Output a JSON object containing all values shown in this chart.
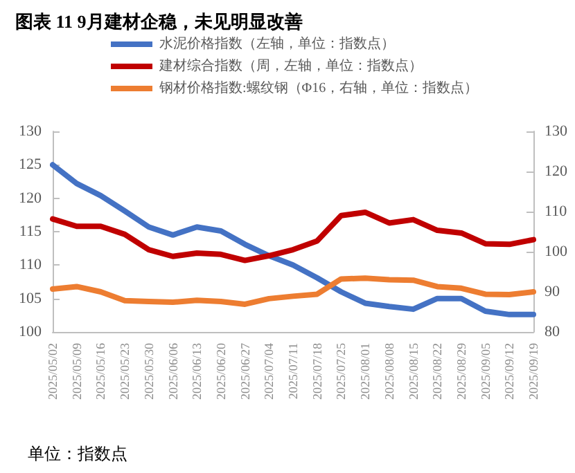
{
  "chart_data": {
    "type": "line",
    "title": "图表 11 9月建材企稳，未见明显改善",
    "categories": [
      "2025/05/02",
      "2025/05/09",
      "2025/05/16",
      "2025/05/23",
      "2025/05/30",
      "2025/06/06",
      "2025/06/13",
      "2025/06/20",
      "2025/06/27",
      "2025/07/04",
      "2025/07/11",
      "2025/07/18",
      "2025/07/25",
      "2025/08/01",
      "2025/08/08",
      "2025/08/15",
      "2025/08/22",
      "2025/08/29",
      "2025/09/05",
      "2025/09/12",
      "2025/09/19"
    ],
    "series": [
      {
        "name": "水泥价格指数（左轴，单位：指数点）",
        "color": "#4472c4",
        "values": [
          125,
          122.2,
          120.4,
          118.1,
          115.7,
          114.5,
          115.7,
          115.1,
          113.1,
          111.4,
          110.0,
          108.1,
          106.0,
          104.3,
          103.8,
          103.4,
          105.0,
          105.0,
          103.1,
          102.6,
          102.6
        ]
      },
      {
        "name": "建材综合指数（周，左轴，单位：指数点）",
        "color": "#c00000",
        "values": [
          116.9,
          115.8,
          115.8,
          114.6,
          112.3,
          111.3,
          111.8,
          111.6,
          110.7,
          111.4,
          112.3,
          113.6,
          117.4,
          117.9,
          116.3,
          116.8,
          115.2,
          114.8,
          113.2,
          113.1,
          113.8
        ]
      },
      {
        "name": "钢材价格指数:螺纹钢（Φ16，右轴，单位：指数点）",
        "color": "#ed7d31",
        "axis": "y2",
        "values": [
          90.7,
          91.3,
          90.0,
          87.8,
          87.6,
          87.4,
          87.9,
          87.6,
          86.9,
          88.3,
          88.9,
          89.4,
          93.2,
          93.4,
          93.0,
          92.9,
          91.3,
          90.9,
          89.4,
          89.3,
          90.0
        ]
      }
    ],
    "ylim": [
      100,
      130
    ],
    "yticks": [
      100,
      105,
      110,
      115,
      120,
      125,
      130
    ],
    "y2lim": [
      80,
      130
    ],
    "y2ticks": [
      80,
      90,
      100,
      110,
      120,
      130
    ],
    "legend": "top",
    "grid": false,
    "marker": "none",
    "line_style": "solid",
    "annotations": [
      "单位：指数点"
    ]
  }
}
